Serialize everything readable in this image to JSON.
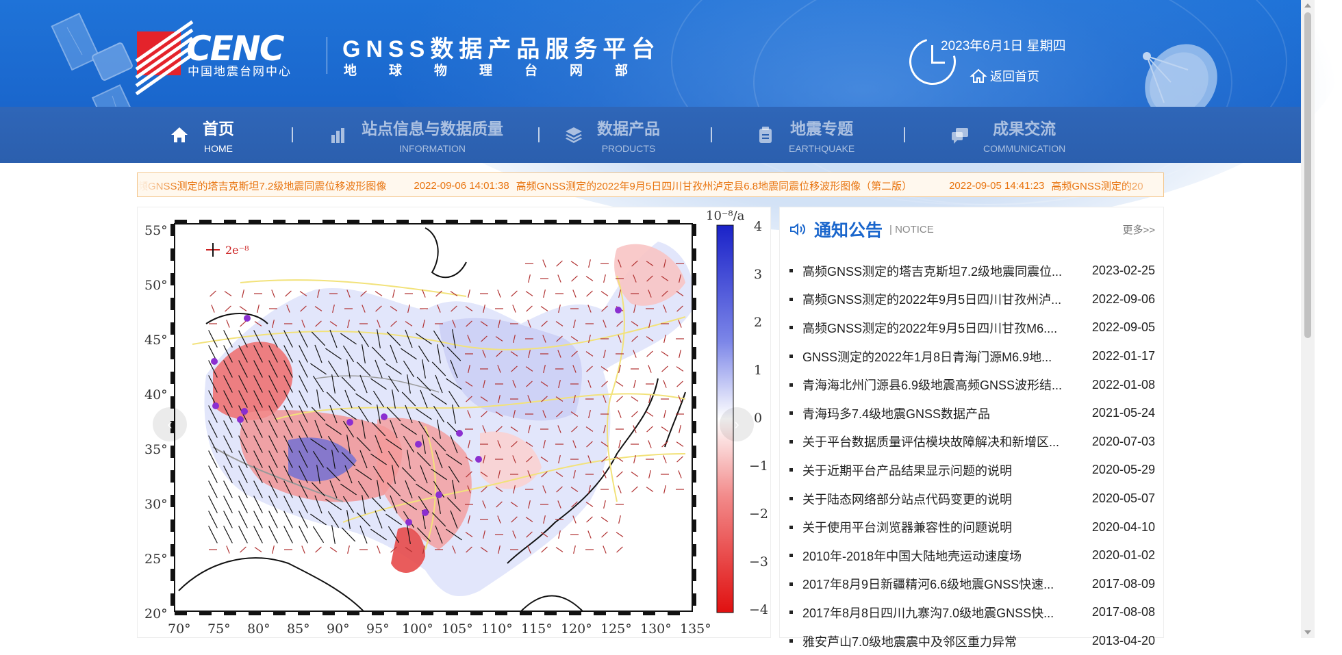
{
  "header": {
    "logo_text": "CENC",
    "logo_subtitle": "中国地震台网中心",
    "platform_title": "GNSS数据产品服务平台",
    "platform_subtitle": "地球物理台网部",
    "date": "2023年6月1日 星期四",
    "home_link": "返回首页"
  },
  "nav": {
    "items": [
      {
        "cn": "首页",
        "en": "HOME",
        "icon": "home-icon",
        "active": true
      },
      {
        "cn": "站点信息与数据质量",
        "en": "INFORMATION",
        "icon": "bar-chart-icon",
        "active": false
      },
      {
        "cn": "数据产品",
        "en": "PRODUCTS",
        "icon": "layers-icon",
        "active": false
      },
      {
        "cn": "地震专题",
        "en": "EARTHQUAKE",
        "icon": "clipboard-icon",
        "active": false
      },
      {
        "cn": "成果交流",
        "en": "COMMUNICATION",
        "icon": "chat-icon",
        "active": false
      }
    ]
  },
  "ticker": {
    "items": [
      "频GNSS测定的塔吉克斯坦7.2级地震同震位移波形图像",
      "2022-09-06 14:01:38",
      "高频GNSS测定的2022年9月5日四川甘孜州泸定县6.8地震同震位移波形图像（第二版）",
      "2022-09-05 14:41:23",
      "高频GNSS测定的20"
    ]
  },
  "map": {
    "unit_label": "10⁻⁸/a",
    "scale_label": "2e⁻⁸",
    "lat_labels": [
      "55°",
      "50°",
      "45°",
      "40°",
      "35°",
      "30°",
      "25°",
      "20°"
    ],
    "lon_labels": [
      "70°",
      "75°",
      "80°",
      "85°",
      "90°",
      "95°",
      "100°",
      "105°",
      "110°",
      "115°",
      "120°",
      "125°",
      "130°",
      "135°"
    ],
    "colorbar_labels": [
      "4",
      "3",
      "2",
      "1",
      "0",
      "−1",
      "−2",
      "−3",
      "−4"
    ],
    "prev_arrow": "‹",
    "next_arrow": "›"
  },
  "notice": {
    "title": "通知公告",
    "subtitle": "| NOTICE",
    "more": "更多>>",
    "items": [
      {
        "title": "高频GNSS测定的塔吉克斯坦7.2级地震同震位...",
        "date": "2023-02-25"
      },
      {
        "title": "高频GNSS测定的2022年9月5日四川甘孜州泸...",
        "date": "2022-09-06"
      },
      {
        "title": "高频GNSS测定的2022年9月5日四川甘孜M6....",
        "date": "2022-09-05"
      },
      {
        "title": "GNSS测定的2022年1月8日青海门源M6.9地...",
        "date": "2022-01-17"
      },
      {
        "title": "青海海北州门源县6.9级地震高频GNSS波形结...",
        "date": "2022-01-08"
      },
      {
        "title": "青海玛多7.4级地震GNSS数据产品",
        "date": "2021-05-24"
      },
      {
        "title": "关于平台数据质量评估模块故障解决和新增区...",
        "date": "2020-07-03"
      },
      {
        "title": "关于近期平台产品结果显示问题的说明",
        "date": "2020-05-29"
      },
      {
        "title": "关于陆态网络部分站点代码变更的说明",
        "date": "2020-05-07"
      },
      {
        "title": "关于使用平台浏览器兼容性的问题说明",
        "date": "2020-04-10"
      },
      {
        "title": "2010年-2018年中国大陆地壳运动速度场",
        "date": "2020-01-02"
      },
      {
        "title": "2017年8月9日新疆精河6.6级地震GNSS快速...",
        "date": "2017-08-09"
      },
      {
        "title": "2017年8月8日四川九寨沟7.0级地震GNSS快...",
        "date": "2017-08-08"
      },
      {
        "title": "雅安芦山7.0级地震震中及邻区重力异常",
        "date": "2013-04-20"
      }
    ]
  },
  "colors": {
    "header_blue": "#1f73d8",
    "nav_blue": "#2f66b8",
    "ticker_orange": "#e8740f",
    "logo_red": "#e4232b",
    "notice_title_blue": "#1a66cc"
  }
}
